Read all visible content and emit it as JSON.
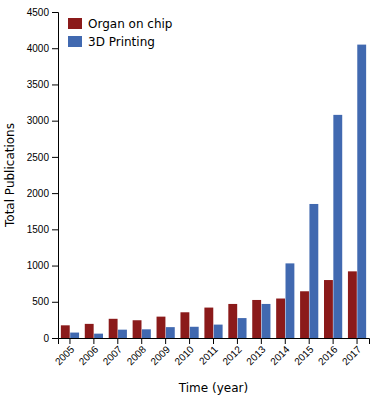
{
  "chart_data": {
    "type": "bar",
    "categories": [
      "2005",
      "2006",
      "2007",
      "2008",
      "2009",
      "2010",
      "2011",
      "2012",
      "2013",
      "2014",
      "2015",
      "2016",
      "2017"
    ],
    "series": [
      {
        "name": "Organ on chip",
        "color": "#8B1A1A",
        "values": [
          175,
          195,
          265,
          245,
          295,
          355,
          420,
          470,
          525,
          545,
          645,
          800,
          920
        ]
      },
      {
        "name": "3D Printing",
        "color": "#4169B0",
        "values": [
          75,
          60,
          115,
          120,
          150,
          155,
          185,
          275,
          470,
          1030,
          1850,
          3080,
          4050
        ]
      }
    ],
    "xlabel": "Time (year)",
    "ylabel": "Total Publications",
    "ylim": [
      0,
      4500
    ],
    "yticks": [
      0,
      500,
      1000,
      1500,
      2000,
      2500,
      3000,
      3500,
      4000,
      4500
    ],
    "grid": false,
    "legend": "upper-left"
  }
}
